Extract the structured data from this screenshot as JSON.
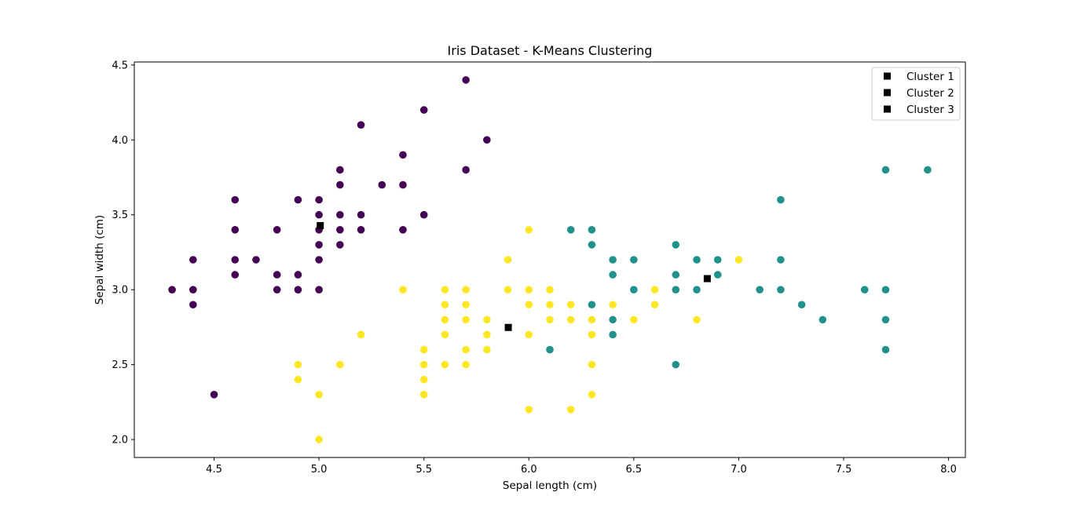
{
  "chart_data": {
    "type": "scatter",
    "title": "Iris Dataset - K-Means Clustering",
    "xlabel": "Sepal length (cm)",
    "ylabel": "Sepal width (cm)",
    "xlim": [
      4.12,
      8.08
    ],
    "ylim": [
      1.88,
      4.52
    ],
    "xticks": [
      "4.5",
      "5.0",
      "5.5",
      "6.0",
      "6.5",
      "7.0",
      "7.5",
      "8.0"
    ],
    "yticks": [
      "2.0",
      "2.5",
      "3.0",
      "3.5",
      "4.0",
      "4.5"
    ],
    "grid": false,
    "legend_position": "top-right",
    "colors": {
      "cluster_purple": "#440154",
      "cluster_teal": "#21918c",
      "cluster_yellow": "#fde725",
      "centroid": "#000000"
    },
    "series": [
      {
        "color_key": "cluster_purple",
        "points": [
          [
            4.3,
            3.0
          ],
          [
            4.4,
            3.2
          ],
          [
            4.4,
            3.0
          ],
          [
            4.4,
            2.9
          ],
          [
            4.5,
            2.3
          ],
          [
            4.6,
            3.6
          ],
          [
            4.6,
            3.4
          ],
          [
            4.6,
            3.2
          ],
          [
            4.6,
            3.1
          ],
          [
            4.7,
            3.2
          ],
          [
            4.8,
            3.4
          ],
          [
            4.8,
            3.1
          ],
          [
            4.8,
            3.0
          ],
          [
            4.9,
            3.6
          ],
          [
            4.9,
            3.1
          ],
          [
            4.9,
            3.0
          ],
          [
            5.0,
            3.6
          ],
          [
            5.0,
            3.5
          ],
          [
            5.0,
            3.4
          ],
          [
            5.0,
            3.3
          ],
          [
            5.0,
            3.2
          ],
          [
            5.0,
            3.0
          ],
          [
            5.1,
            3.8
          ],
          [
            5.1,
            3.7
          ],
          [
            5.1,
            3.5
          ],
          [
            5.1,
            3.4
          ],
          [
            5.1,
            3.3
          ],
          [
            5.2,
            4.1
          ],
          [
            5.2,
            3.5
          ],
          [
            5.2,
            3.4
          ],
          [
            5.3,
            3.7
          ],
          [
            5.4,
            3.9
          ],
          [
            5.4,
            3.7
          ],
          [
            5.4,
            3.4
          ],
          [
            5.5,
            4.2
          ],
          [
            5.5,
            3.5
          ],
          [
            5.7,
            4.4
          ],
          [
            5.7,
            3.8
          ],
          [
            5.8,
            4.0
          ]
        ]
      },
      {
        "color_key": "cluster_yellow",
        "points": [
          [
            4.9,
            2.5
          ],
          [
            4.9,
            2.4
          ],
          [
            5.0,
            2.3
          ],
          [
            5.0,
            2.0
          ],
          [
            5.1,
            2.5
          ],
          [
            5.2,
            2.7
          ],
          [
            5.4,
            3.0
          ],
          [
            5.5,
            2.6
          ],
          [
            5.5,
            2.5
          ],
          [
            5.5,
            2.4
          ],
          [
            5.5,
            2.3
          ],
          [
            5.6,
            3.0
          ],
          [
            5.6,
            2.9
          ],
          [
            5.6,
            2.8
          ],
          [
            5.6,
            2.7
          ],
          [
            5.6,
            2.5
          ],
          [
            5.7,
            3.0
          ],
          [
            5.7,
            2.9
          ],
          [
            5.7,
            2.8
          ],
          [
            5.7,
            2.6
          ],
          [
            5.7,
            2.5
          ],
          [
            5.8,
            2.8
          ],
          [
            5.8,
            2.7
          ],
          [
            5.8,
            2.6
          ],
          [
            5.9,
            3.2
          ],
          [
            5.9,
            3.0
          ],
          [
            6.0,
            3.4
          ],
          [
            6.0,
            3.0
          ],
          [
            6.0,
            2.9
          ],
          [
            6.0,
            2.7
          ],
          [
            6.0,
            2.2
          ],
          [
            6.1,
            3.0
          ],
          [
            6.1,
            2.9
          ],
          [
            6.1,
            2.8
          ],
          [
            6.2,
            2.9
          ],
          [
            6.2,
            2.8
          ],
          [
            6.2,
            2.2
          ],
          [
            6.3,
            2.8
          ],
          [
            6.3,
            2.7
          ],
          [
            6.3,
            2.5
          ],
          [
            6.3,
            2.3
          ],
          [
            6.4,
            2.9
          ],
          [
            6.5,
            2.8
          ],
          [
            6.6,
            3.0
          ],
          [
            6.6,
            2.9
          ],
          [
            6.8,
            2.8
          ],
          [
            7.0,
            3.2
          ]
        ]
      },
      {
        "color_key": "cluster_teal",
        "points": [
          [
            6.1,
            2.6
          ],
          [
            6.2,
            3.4
          ],
          [
            6.3,
            3.4
          ],
          [
            6.3,
            3.3
          ],
          [
            6.3,
            2.9
          ],
          [
            6.4,
            3.2
          ],
          [
            6.4,
            3.1
          ],
          [
            6.4,
            2.8
          ],
          [
            6.4,
            2.7
          ],
          [
            6.5,
            3.2
          ],
          [
            6.5,
            3.0
          ],
          [
            6.7,
            3.3
          ],
          [
            6.7,
            3.1
          ],
          [
            6.7,
            3.0
          ],
          [
            6.7,
            2.5
          ],
          [
            6.8,
            3.2
          ],
          [
            6.8,
            3.0
          ],
          [
            6.9,
            3.2
          ],
          [
            6.9,
            3.1
          ],
          [
            7.1,
            3.0
          ],
          [
            7.2,
            3.6
          ],
          [
            7.2,
            3.2
          ],
          [
            7.2,
            3.0
          ],
          [
            7.3,
            2.9
          ],
          [
            7.4,
            2.8
          ],
          [
            7.6,
            3.0
          ],
          [
            7.7,
            3.8
          ],
          [
            7.7,
            3.0
          ],
          [
            7.7,
            2.8
          ],
          [
            7.7,
            2.6
          ],
          [
            7.9,
            3.8
          ]
        ]
      }
    ],
    "centroids": [
      {
        "name": "Cluster 1",
        "x": 5.006,
        "y": 3.428
      },
      {
        "name": "Cluster 2",
        "x": 5.902,
        "y": 2.748
      },
      {
        "name": "Cluster 3",
        "x": 6.85,
        "y": 3.074
      }
    ]
  }
}
